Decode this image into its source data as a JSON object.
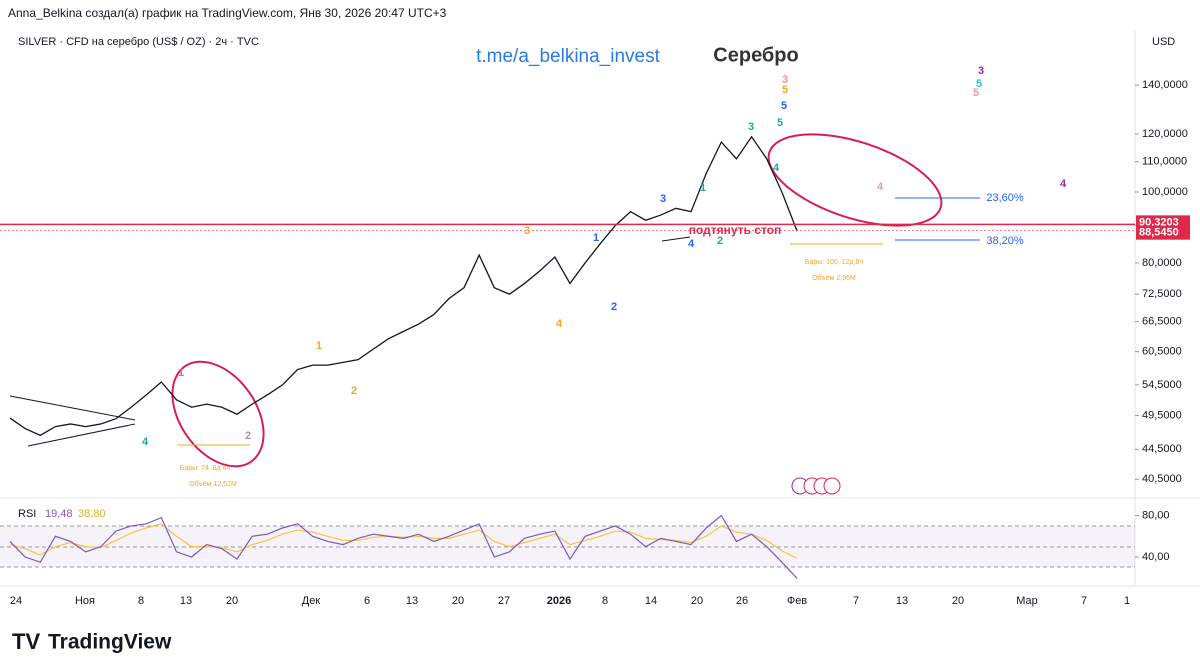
{
  "header": {
    "author_line": "Anna_Belkina создал(а) график на TradingView.com, Янв 30, 2026 20:47 UTC+3",
    "symbol": "SILVER · CFD на серебро (US$ / OZ) · 2ч · TVC",
    "currency": "USD",
    "logo": "TradingView"
  },
  "chart_data": {
    "type": "line",
    "title": "Серебро",
    "subtitle": "t.me/a_belkina_invest",
    "log_scale": true,
    "color": "#131722",
    "values": [
      49.1,
      47.5,
      46.5,
      47.8,
      48.2,
      47.8,
      48.2,
      49,
      50.8,
      52.8,
      55,
      52,
      50.8,
      51.3,
      50.8,
      49.7,
      51.3,
      52.8,
      54.5,
      57.2,
      58,
      58,
      58.5,
      59,
      61,
      63,
      64.5,
      66,
      68,
      71.5,
      74,
      82,
      74,
      72.5,
      75,
      78,
      81.5,
      75,
      80,
      85,
      90,
      94,
      91.5,
      93,
      95,
      94,
      106,
      117,
      111,
      119,
      111,
      100,
      88.5
    ],
    "ylim": [
      38.3,
      166.5
    ],
    "yticks": [
      {
        "value": 40.5,
        "label": "40,5000"
      },
      {
        "value": 44.5,
        "label": "44,5000"
      },
      {
        "value": 49.5,
        "label": "49,5000"
      },
      {
        "value": 54.5,
        "label": "54,5000"
      },
      {
        "value": 60.5,
        "label": "60,5000"
      },
      {
        "value": 66.5,
        "label": "66,5000"
      },
      {
        "value": 72.5,
        "label": "72,5000"
      },
      {
        "value": 80,
        "label": "80,0000"
      },
      {
        "value": 90,
        "label": "90,0000"
      },
      {
        "value": 100,
        "label": "100,0000"
      },
      {
        "value": 110,
        "label": "110,0000"
      },
      {
        "value": 120,
        "label": "120,0000"
      },
      {
        "value": 140,
        "label": "140,0000"
      }
    ],
    "price_labels": [
      {
        "value": 90.3203,
        "label": "90,3203",
        "color": "#e0284b"
      },
      {
        "value": 88.545,
        "label": "88,5450",
        "color": "#e0284b"
      }
    ],
    "xtick_labels": [
      "24",
      "Ноя",
      "8",
      "13",
      "20",
      "Дек",
      "6",
      "13",
      "20",
      "27",
      "2026",
      "8",
      "14",
      "20",
      "26",
      "Фев",
      "7",
      "13",
      "20",
      "Мар",
      "7",
      "1"
    ],
    "annotations": [
      {
        "text": "1",
        "color": "#f06292"
      },
      {
        "text": "2",
        "color": "#b48ead"
      },
      {
        "text": "4",
        "color": "#26a69a"
      },
      {
        "text": "1",
        "color": "#f5a623"
      },
      {
        "text": "2",
        "color": "#f5a623"
      },
      {
        "text": "3",
        "color": "#f5a623"
      },
      {
        "text": "4",
        "color": "#f5a623"
      },
      {
        "text": "1",
        "color": "#2962ff"
      },
      {
        "text": "2",
        "color": "#2962ff"
      },
      {
        "text": "3",
        "color": "#2962ff"
      },
      {
        "text": "4",
        "color": "#2962ff"
      },
      {
        "text": "1",
        "color": "#26a69a"
      },
      {
        "text": "2",
        "color": "#26a69a"
      },
      {
        "text": "3",
        "color": "#26a69a"
      },
      {
        "text": "4",
        "color": "#26a69a"
      },
      {
        "text": "5",
        "color": "#26a69a"
      },
      {
        "text": "5",
        "color": "#2962ff"
      },
      {
        "text": "5",
        "color": "#f5a623"
      },
      {
        "text": "3",
        "color": "#f48fb1"
      },
      {
        "text": "4",
        "color": "#f48fb1"
      },
      {
        "text": "3",
        "color": "#9c27b0"
      },
      {
        "text": "5",
        "color": "#26c6da"
      },
      {
        "text": "5",
        "color": "#f48fb1"
      },
      {
        "text": "4",
        "color": "#9c27b0"
      },
      {
        "text": "подтянуть стоп",
        "color": "#e0284b"
      },
      {
        "text": "23,60%",
        "color": "#2962ff"
      },
      {
        "text": "38,20%",
        "color": "#2962ff"
      },
      {
        "text": "Бары: 74, 8д 4ч",
        "color": "#f5a623"
      },
      {
        "text": "Объём 12,52М",
        "color": "#f5a623"
      },
      {
        "text": "Бары: 100, 12д 8ч",
        "color": "#f5a623"
      },
      {
        "text": "Объём 2,96М",
        "color": "#f5a623"
      }
    ],
    "rsi": {
      "name": "RSI",
      "value_label": "19,48",
      "signal_label": "38,80",
      "color": "#7e57c2",
      "signal_color": "#f5c542",
      "values": [
        55,
        40,
        35,
        60,
        55,
        45,
        50,
        65,
        70,
        72,
        78,
        45,
        40,
        52,
        48,
        38,
        60,
        62,
        68,
        72,
        60,
        55,
        52,
        58,
        62,
        60,
        58,
        62,
        55,
        60,
        66,
        72,
        40,
        45,
        58,
        62,
        65,
        38,
        60,
        65,
        70,
        62,
        50,
        58,
        55,
        52,
        68,
        80,
        55,
        62,
        50,
        35,
        19.48
      ],
      "signal": [
        52,
        48,
        42,
        50,
        54,
        50,
        49,
        56,
        63,
        68,
        72,
        60,
        50,
        50,
        49,
        45,
        52,
        56,
        62,
        66,
        64,
        60,
        56,
        56,
        59,
        60,
        59,
        60,
        58,
        58,
        62,
        66,
        55,
        50,
        54,
        58,
        62,
        52,
        56,
        60,
        65,
        64,
        58,
        57,
        56,
        54,
        60,
        70,
        64,
        62,
        56,
        46,
        38.8
      ],
      "ylim": [
        13,
        95
      ],
      "yticks": [
        {
          "value": 80,
          "label": "80,00"
        },
        {
          "value": 40,
          "label": "40,00"
        }
      ]
    }
  }
}
